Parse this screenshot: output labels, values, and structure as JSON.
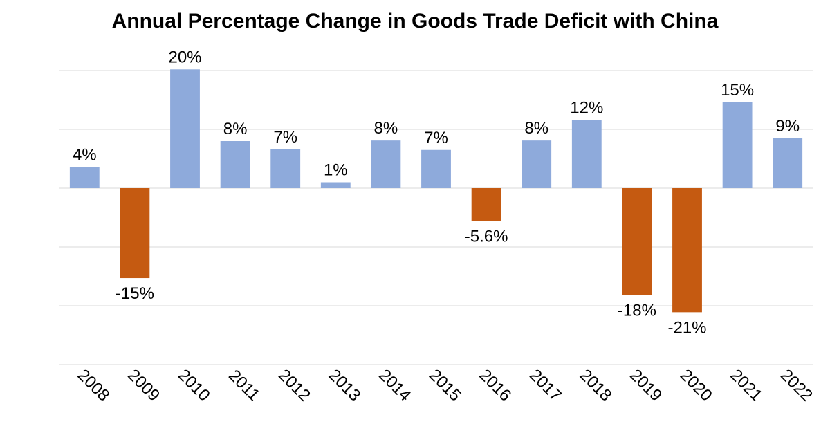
{
  "chart_data": {
    "type": "bar",
    "title": "Annual Percentage Change in Goods Trade Deficit with China",
    "xlabel": "",
    "ylabel": "",
    "categories": [
      "2008",
      "2009",
      "2010",
      "2011",
      "2012",
      "2013",
      "2014",
      "2015",
      "2016",
      "2017",
      "2018",
      "2019",
      "2020",
      "2021",
      "2022"
    ],
    "values": [
      3.6,
      -15.3,
      20.2,
      8.0,
      6.6,
      1.0,
      8.1,
      6.5,
      -5.6,
      8.1,
      11.6,
      -18.2,
      -21.1,
      14.6,
      8.5
    ],
    "data_labels": [
      "4%",
      "-15%",
      "20%",
      "8%",
      "7%",
      "1%",
      "8%",
      "7%",
      "-5.6%",
      "8%",
      "12%",
      "-18%",
      "-21%",
      "15%",
      "9%"
    ],
    "ylim": [
      -30,
      20
    ],
    "y_gridlines": [
      20,
      10,
      0,
      -10,
      -20,
      -30
    ],
    "grid": true,
    "legend": "none",
    "colors": {
      "positive": "#8eaadb",
      "negative": "#c55a11",
      "grid": "#d9d9d9"
    }
  }
}
